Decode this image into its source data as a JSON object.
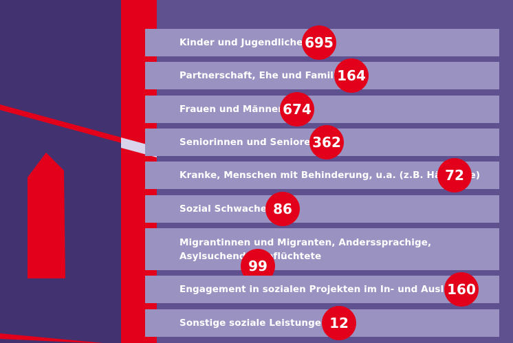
{
  "colors": {
    "background": "#5f5190",
    "left_panel": "#42326f",
    "accent_red": "#e2001a",
    "row_fill": "#9a93c2",
    "text": "#ffffff"
  },
  "chart_data": {
    "type": "bar",
    "title": "",
    "categories": [
      "Kinder und Jugendliche",
      "Partnerschaft, Ehe und Familie",
      "Frauen und Männer",
      "Seniorinnen und Senioren",
      "Kranke, Menschen mit Behinderung, u.a. (z.B. Häftlinge)",
      "Sozial Schwache",
      "Migrantinnen und Migranten, Anderssprachige, Asylsuchende, Geflüchtete",
      "Engagement in sozialen Projekten im In- und Ausland",
      "Sonstige soziale Leistungen"
    ],
    "values": [
      695,
      164,
      674,
      362,
      72,
      86,
      99,
      160,
      12
    ]
  }
}
